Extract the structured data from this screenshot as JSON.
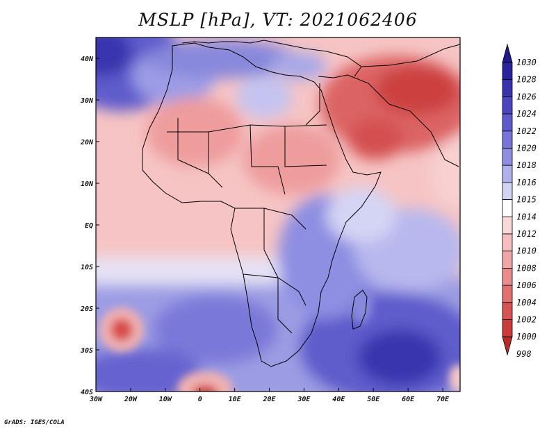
{
  "title": "MSLP [hPa], VT: 2021062406",
  "footer": "GrADS: IGES/COLA",
  "map": {
    "lon_range": [
      -30,
      75
    ],
    "lat_range": [
      -40,
      45
    ],
    "lat_ticks": [
      {
        "value": 40,
        "label": "40N"
      },
      {
        "value": 30,
        "label": "30N"
      },
      {
        "value": 20,
        "label": "20N"
      },
      {
        "value": 10,
        "label": "10N"
      },
      {
        "value": 0,
        "label": "EQ"
      },
      {
        "value": -10,
        "label": "10S"
      },
      {
        "value": -20,
        "label": "20S"
      },
      {
        "value": -30,
        "label": "30S"
      },
      {
        "value": -40,
        "label": "40S"
      }
    ],
    "lon_ticks": [
      {
        "value": -30,
        "label": "30W"
      },
      {
        "value": -20,
        "label": "20W"
      },
      {
        "value": -10,
        "label": "10W"
      },
      {
        "value": 0,
        "label": "0"
      },
      {
        "value": 10,
        "label": "10E"
      },
      {
        "value": 20,
        "label": "20E"
      },
      {
        "value": 30,
        "label": "30E"
      },
      {
        "value": 40,
        "label": "40E"
      },
      {
        "value": 50,
        "label": "50E"
      },
      {
        "value": 60,
        "label": "60E"
      },
      {
        "value": 70,
        "label": "70E"
      }
    ]
  },
  "colorbar": {
    "levels": [
      {
        "label": "1030",
        "color": "#1e1a8c"
      },
      {
        "label": "1028",
        "color": "#28249c"
      },
      {
        "label": "1026",
        "color": "#3834ae"
      },
      {
        "label": "1024",
        "color": "#4a46be"
      },
      {
        "label": "1022",
        "color": "#5e5ccc"
      },
      {
        "label": "1020",
        "color": "#7674d8"
      },
      {
        "label": "1018",
        "color": "#8e8ee2"
      },
      {
        "label": "1016",
        "color": "#b0b0ec"
      },
      {
        "label": "1015",
        "color": "#d2d4f6"
      },
      {
        "label": "1014",
        "color": "#ffffff"
      },
      {
        "label": "1012",
        "color": "#fbd8d8"
      },
      {
        "label": "1010",
        "color": "#f6bebe"
      },
      {
        "label": "1008",
        "color": "#f0a6a6"
      },
      {
        "label": "1006",
        "color": "#ea8c8c"
      },
      {
        "label": "1004",
        "color": "#e27070"
      },
      {
        "label": "1002",
        "color": "#d85454"
      },
      {
        "label": "1000",
        "color": "#cc3a3a"
      },
      {
        "label": "998",
        "color": "#b82a2a"
      }
    ]
  }
}
